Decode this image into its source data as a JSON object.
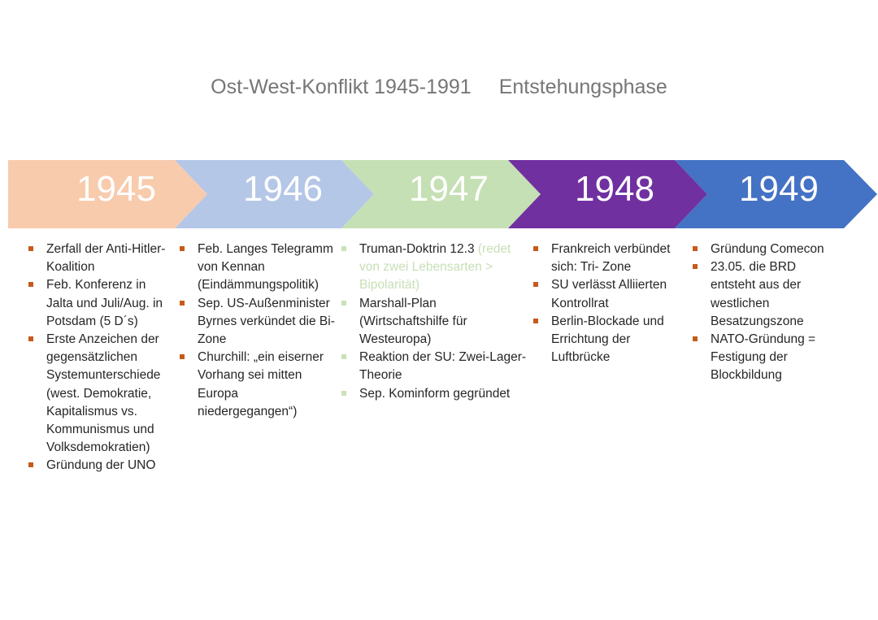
{
  "title": {
    "main": "Ost-West-Konflikt 1945-1991",
    "sub": "Entstehungsphase"
  },
  "colors": {
    "y1945": "#f8cbad",
    "y1946": "#b4c7e7",
    "y1947": "#c5e0b4",
    "y1948": "#7030a0",
    "y1949": "#4472c4",
    "bullet_orange": "#c65a1b",
    "bullet_green": "#c9e2b8"
  },
  "timeline": [
    {
      "year": "1945",
      "items": [
        "Zerfall der Anti-Hitler-Koalition",
        "Feb. Konferenz in Jalta und Juli/Aug. in Potsdam (5 D´s)",
        "Erste Anzeichen der gegensätzlichen Systemunterschiede (west. Demokratie, Kapitalismus vs. Kommunismus und Volksdemokratien)",
        "Gründung der UNO"
      ]
    },
    {
      "year": "1946",
      "items": [
        "Feb. Langes Telegramm von Kennan (Eindämmungspolitik)",
        "Sep. US-Außenminister Byrnes verkündet die Bi-Zone",
        "Churchill: „ein eiserner Vorhang sei mitten Europa niedergegangen“)"
      ]
    },
    {
      "year": "1947",
      "items": [
        "Truman-Doktrin 12.3",
        "Marshall-Plan (Wirtschaftshilfe für Westeuropa)",
        "Reaktion der SU: Zwei-Lager-Theorie",
        "Sep. Kominform gegründet"
      ],
      "faded_note": "(redet von zwei Lebensarten > Bipolarität)"
    },
    {
      "year": "1948",
      "items": [
        "Frankreich verbündet sich: Tri- Zone",
        "SU verlässt Alliierten Kontrollrat",
        "Berlin-Blockade und Errichtung der Luftbrücke"
      ]
    },
    {
      "year": "1949",
      "items": [
        "Gründung Comecon",
        "23.05. die BRD entsteht aus der westlichen Besatzungszone",
        "NATO-Gründung = Festigung der Blockbildung"
      ]
    }
  ]
}
